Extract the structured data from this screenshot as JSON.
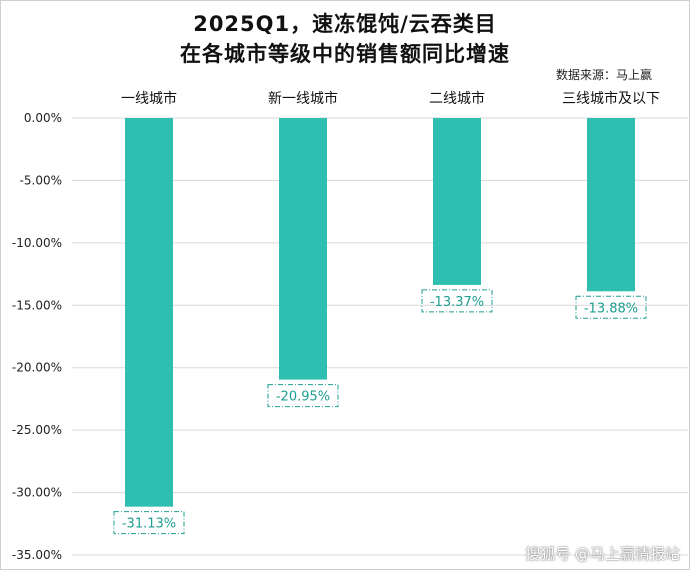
{
  "title_line1": "2025Q1，速冻馄饨/云吞类目",
  "title_line2": "在各城市等级中的销售额同比增速",
  "source": "数据来源：马上赢",
  "watermark": "搜狐号 @马上赢情报站",
  "colors": {
    "bar": "#2fbfb0",
    "label": "#1f9e90",
    "grid": "#d9d9d9",
    "axis_text": "#222222"
  },
  "chart_data": {
    "type": "bar",
    "categories": [
      "一线城市",
      "新一线城市",
      "二线城市",
      "三线城市及以下"
    ],
    "values": [
      -31.13,
      -20.95,
      -13.37,
      -13.88
    ],
    "data_labels": [
      "-31.13%",
      "-20.95%",
      "-13.37%",
      "-13.88%"
    ],
    "ylim": [
      -35,
      0
    ],
    "yticks": [
      0,
      -5,
      -10,
      -15,
      -20,
      -25,
      -30,
      -35
    ],
    "ytick_labels": [
      "0.00%",
      "-5.00%",
      "-10.00%",
      "-15.00%",
      "-20.00%",
      "-25.00%",
      "-30.00%",
      "-35.00%"
    ],
    "category_axis_position": "top",
    "grid": true,
    "legend": false
  }
}
